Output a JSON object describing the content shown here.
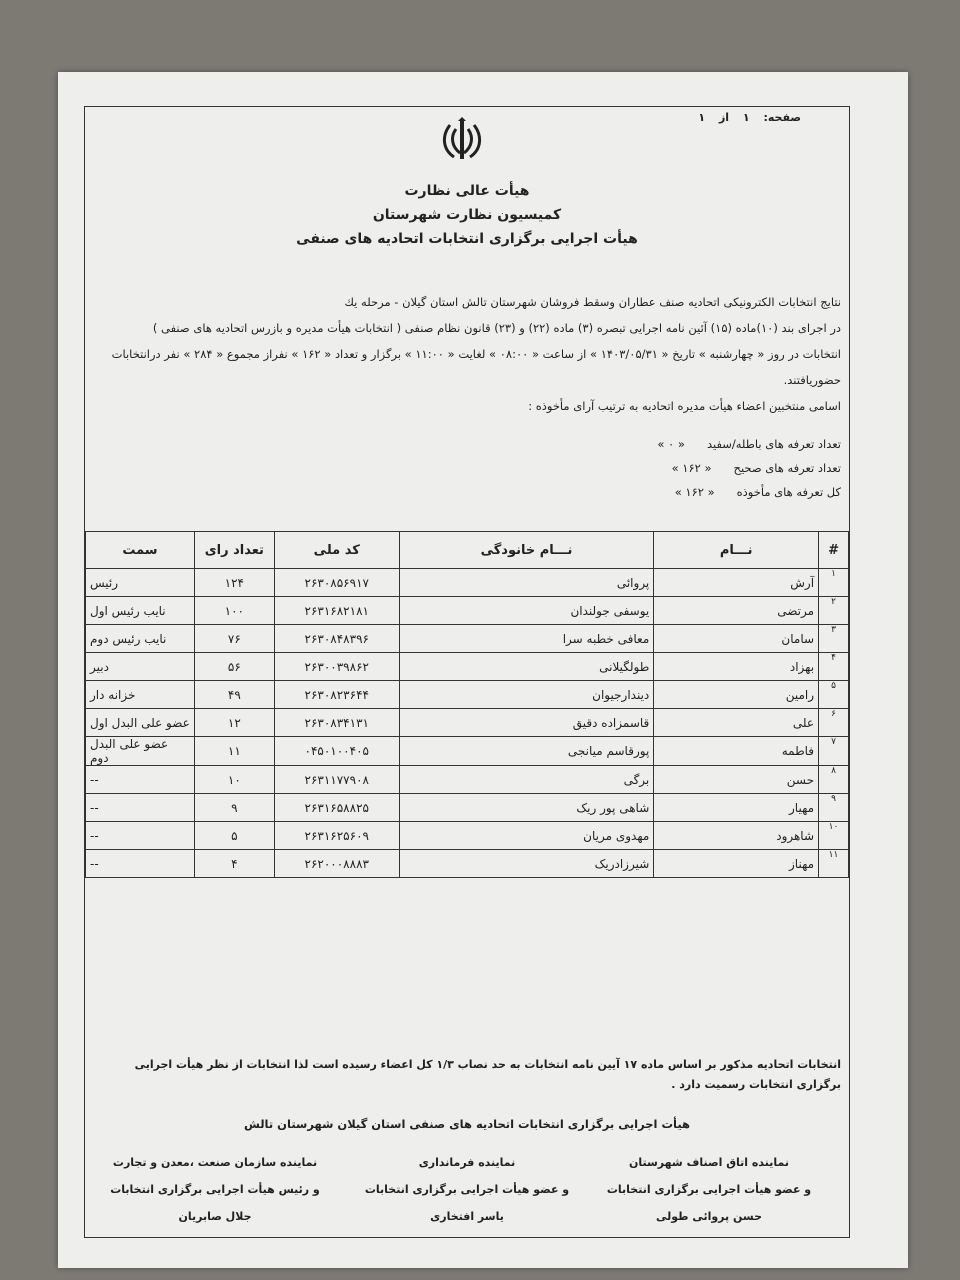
{
  "page": {
    "label": "صفحه:",
    "current": "۱",
    "of": "از",
    "total": "۱"
  },
  "header": {
    "line1": "هیأت عالی نظارت",
    "line2": "کمیسیون نظارت شهرستان",
    "line3": "هیأت اجرایی برگزاری انتخابات اتحادیه های صنفی"
  },
  "intro": {
    "p1": "نتایج انتخابات  الکترونیکی اتحادیه  صنف عطاران وسقط فروشان شهرستان تالش استان گیلان - مرحله یك",
    "p2": "در اجرای بند (۱۰)ماده (۱۵) آئین نامه اجرایی تبصره (۳) ماده (۲۲) و (۲۳) قانون نظام صنفی   ( انتخابات هیأت مدیره و بازرس اتحادیه های صنفی )",
    "p3": "انتخابات  در روز  « چهارشنبه » تاریخ « ۱۴۰۳/۰۵/۳۱ » از ساعت « ۰۸:۰۰ » لغایت « ۱۱:۰۰ » برگزار و تعداد « ۱۶۲ » نفراز مجموع « ۲۸۴ » نفر درانتخابات حضوریافتند.",
    "p4": "اسامی منتخبین اعضاء هیأت مدیره اتحادیه به ترتیب آرای مأخوذه :"
  },
  "counts": [
    {
      "label": "تعداد تعرفه های باطله/سفید",
      "value": "« ۰ »"
    },
    {
      "label": "تعداد تعرفه های صحیح",
      "value": "« ۱۶۲ »"
    },
    {
      "label": "کل تعرفه های مأخوذه",
      "value": "« ۱۶۲ »"
    }
  ],
  "table": {
    "headers": [
      "#",
      "نـــام",
      "نـــام خانودگی",
      "کد ملی",
      "تعداد رای",
      "سمت"
    ],
    "rows": [
      [
        "۱",
        "آرش",
        "پروائی",
        "۲۶۳۰۸۵۶۹۱۷",
        "۱۲۴",
        "رئیس"
      ],
      [
        "۲",
        "مرتضی",
        "یوسفی جولندان",
        "۲۶۳۱۶۸۲۱۸۱",
        "۱۰۰",
        "نایب رئیس اول"
      ],
      [
        "۳",
        "سامان",
        "معافی خطبه سرا",
        "۲۶۳۰۸۴۸۳۹۶",
        "۷۶",
        "نایب رئیس دوم"
      ],
      [
        "۴",
        "بهزاد",
        "طولگیلانی",
        "۲۶۳۰۰۳۹۸۶۲",
        "۵۶",
        "دبیر"
      ],
      [
        "۵",
        "رامین",
        "دیندارجیوان",
        "۲۶۳۰۸۲۳۶۴۴",
        "۴۹",
        "خزانه دار"
      ],
      [
        "۶",
        "علی",
        "قاسمزاده دقیق",
        "۲۶۳۰۸۳۴۱۳۱",
        "۱۲",
        "عضو علی البدل اول"
      ],
      [
        "۷",
        "فاطمه",
        "پورقاسم میانجی",
        "۰۴۵۰۱۰۰۴۰۵",
        "۱۱",
        "عضو علی البدل دوم"
      ],
      [
        "۸",
        "حسن",
        "برگی",
        "۲۶۳۱۱۷۷۹۰۸",
        "۱۰",
        "--"
      ],
      [
        "۹",
        "مهیار",
        "شاهی پور ریک",
        "۲۶۳۱۶۵۸۸۲۵",
        "۹",
        "--"
      ],
      [
        "۱۰",
        "شاهرود",
        "مهدوی مریان",
        "۲۶۳۱۶۲۵۶۰۹",
        "۵",
        "--"
      ],
      [
        "۱۱",
        "مهناز",
        "شیرزادریک",
        "۲۶۲۰۰۰۸۸۸۳",
        "۴",
        "--"
      ]
    ]
  },
  "note": "انتخابات اتحادیه مذکور بر اساس ماده ۱۷ آیین نامه انتخابات به حد نصاب  ۱/۳ کل اعضاء رسیده است لذا انتخابات از نظر هیأت اجرایی برگزاری انتخابات رسمیت دارد .",
  "signatures": {
    "title": "هیأت اجرایی برگزاری انتخابات اتحادیه های صنفی استان گیلان شهرستان تالش",
    "signers": [
      {
        "role1": "نماینده اتاق اصناف شهرستان",
        "role2": "و عضو هیأت اجرایی برگزاری انتخابات",
        "name": "حسن پروائی طولی"
      },
      {
        "role1": "نماینده فرمانداری",
        "role2": "و عضو هیأت اجرایی برگزاری انتخابات",
        "name": "یاسر افتخاری"
      },
      {
        "role1": "نماینده سازمان صنعت ،معدن و تجارت",
        "role2": "و رئیس هیأت اجرایی برگزاری انتخابات",
        "name": "جلال صابریان"
      }
    ]
  }
}
